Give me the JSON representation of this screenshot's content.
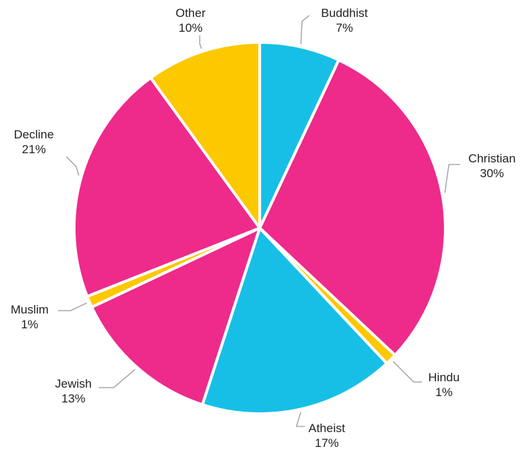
{
  "chart_data": {
    "type": "pie",
    "title": "",
    "slices": [
      {
        "name": "Buddhist",
        "value": 7,
        "label": "7%",
        "color": "#17BFE6"
      },
      {
        "name": "Christian",
        "value": 30,
        "label": "30%",
        "color": "#EE2A8B"
      },
      {
        "name": "Hindu",
        "value": 1,
        "label": "1%",
        "color": "#FCC800"
      },
      {
        "name": "Atheist",
        "value": 17,
        "label": "17%",
        "color": "#17BFE6"
      },
      {
        "name": "Jewish",
        "value": 13,
        "label": "13%",
        "color": "#EE2A8B"
      },
      {
        "name": "Muslim",
        "value": 1,
        "label": "1%",
        "color": "#FCC800"
      },
      {
        "name": "Decline",
        "value": 21,
        "label": "21%",
        "color": "#EE2A8B"
      },
      {
        "name": "Other",
        "value": 10,
        "label": "10%",
        "color": "#FCC800"
      }
    ]
  }
}
